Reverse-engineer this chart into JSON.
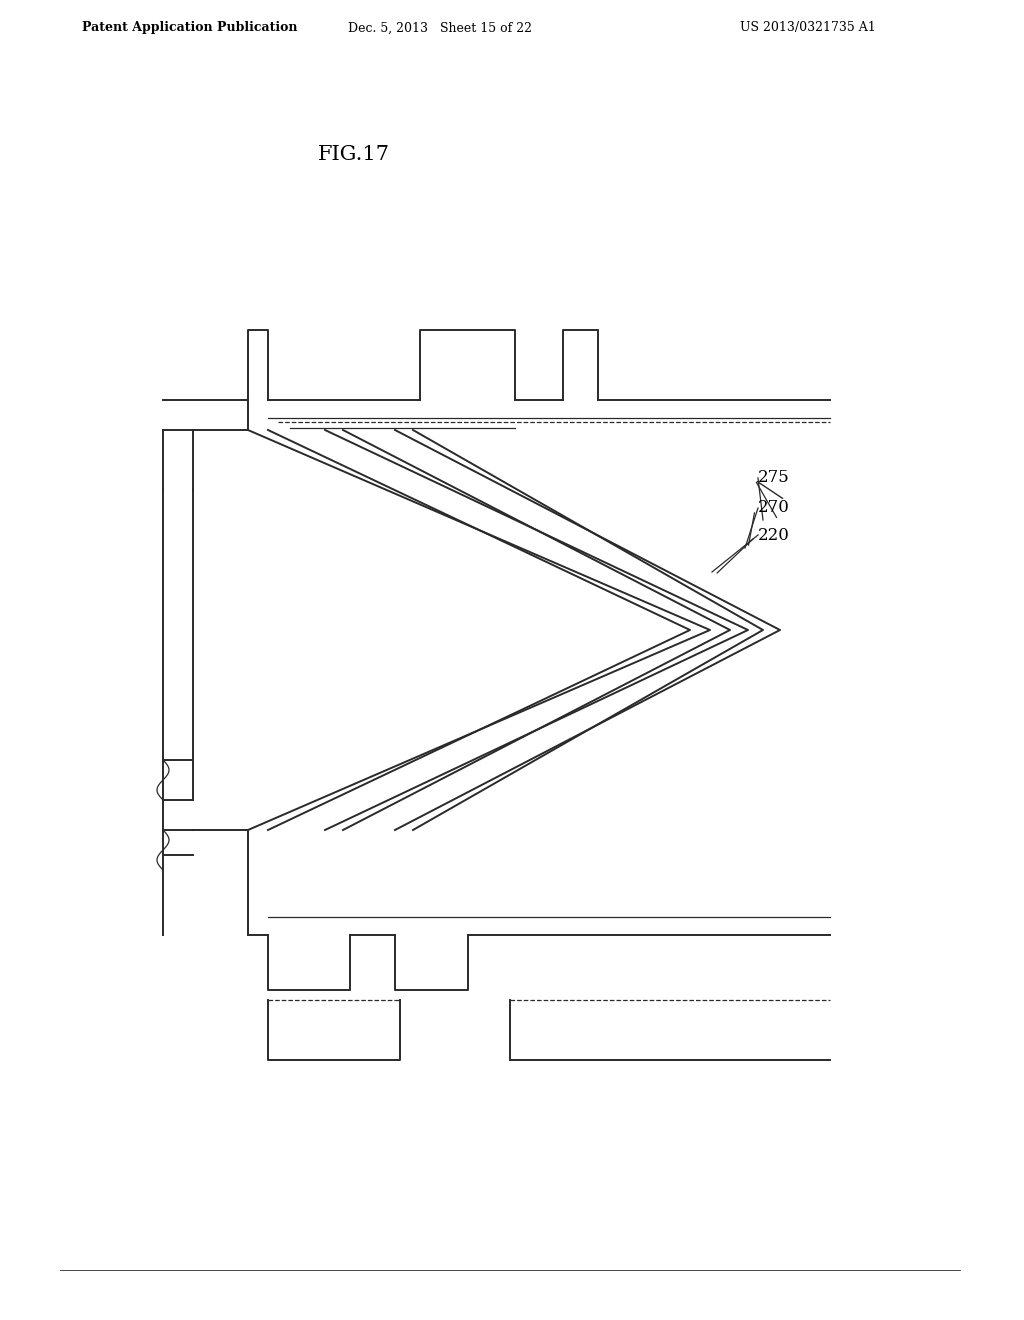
{
  "title": "FIG.17",
  "header_left": "Patent Application Publication",
  "header_mid": "Dec. 5, 2013   Sheet 15 of 22",
  "header_right": "US 2013/0321735 A1",
  "bg_color": "#ffffff",
  "line_color": "#2a2a2a",
  "label_275": "275",
  "label_270": "270",
  "label_220": "220",
  "lw_main": 1.4,
  "lw_thin": 0.9
}
